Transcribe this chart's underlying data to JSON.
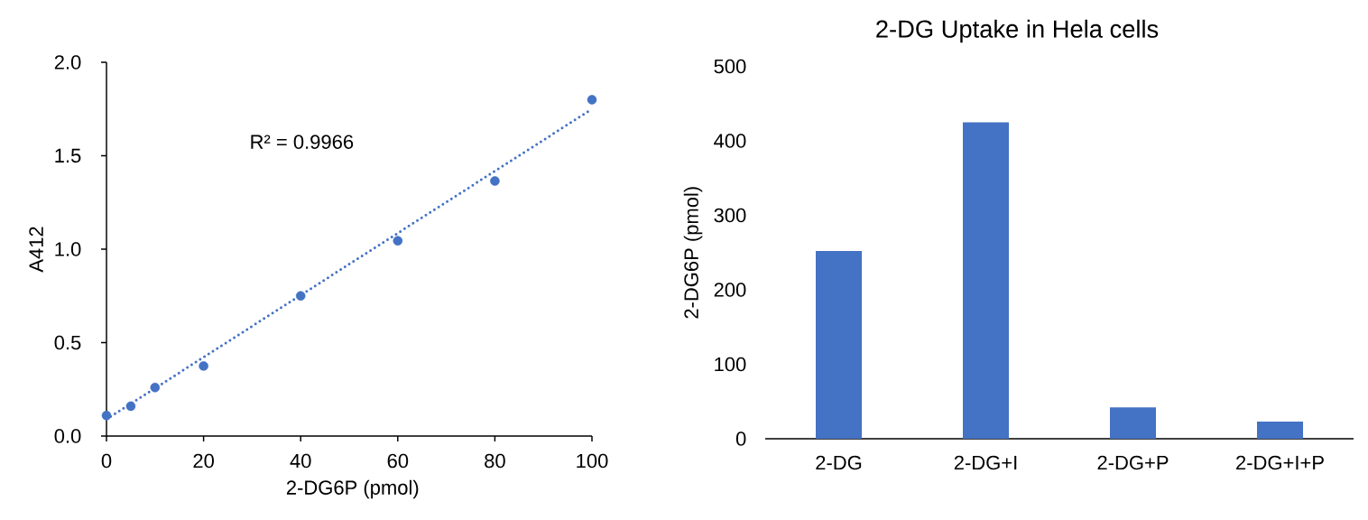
{
  "chart_data": [
    {
      "type": "scatter",
      "xlabel": "2-DG6P (pmol)",
      "ylabel": "A412",
      "x": [
        0,
        5,
        10,
        20,
        40,
        60,
        80,
        100
      ],
      "series": [
        {
          "type": "scatter",
          "color": "#4472c4",
          "marker": "circle",
          "values": [
            0.11,
            0.16,
            0.26,
            0.375,
            0.75,
            1.045,
            1.365,
            1.8
          ]
        },
        {
          "type": "line",
          "color": "#4472c4",
          "line_style": "dotted",
          "x": [
            0,
            100
          ],
          "values": [
            0.09,
            1.75
          ]
        }
      ],
      "xlim": [
        0,
        100
      ],
      "ylim": [
        0,
        2
      ],
      "xticks": [
        0,
        20,
        40,
        60,
        80,
        100
      ],
      "yticks": [
        {
          "value": 0,
          "label": "0.0"
        },
        0.5,
        {
          "value": 1,
          "label": "1.0"
        },
        1.5,
        {
          "value": 2,
          "label": "2.0"
        }
      ],
      "annotations": [
        "R² = 0.9966"
      ]
    },
    {
      "type": "bar",
      "title": "2-DG Uptake in Hela cells",
      "ylabel": "2-DG6P (pmol)",
      "categories": [
        "2-DG",
        "2-DG+I",
        "2-DG+P",
        "2-DG+I+P"
      ],
      "values": [
        252,
        425,
        42,
        23
      ],
      "color": "#4472c4",
      "ylim": [
        0,
        500
      ],
      "yticks": [
        0,
        100,
        200,
        300,
        400,
        500
      ]
    }
  ]
}
